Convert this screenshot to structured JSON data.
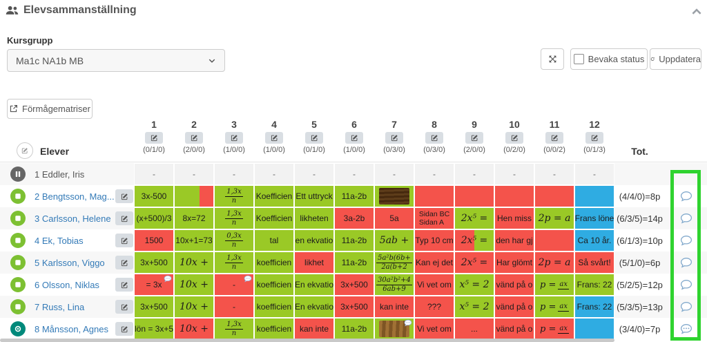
{
  "colors": {
    "green": "#9AC926",
    "red": "#F4534B",
    "blue": "#2FACE2",
    "gray_cell": "#f2f2f2",
    "link": "#337AB7",
    "status_green": "#7DC032",
    "status_gray": "#666666",
    "status_teal": "#00897B",
    "highlight": "#2FD32F"
  },
  "header": {
    "title": "Elevsammanställning",
    "collapse_icon": "chevron-up-icon"
  },
  "controls": {
    "kursgrupp_label": "Kursgrupp",
    "kursgrupp_value": "Ma1c NA1b MB",
    "expand_icon": "expand-icon",
    "bevaka_checked": false,
    "bevaka_label": "Bevaka status",
    "uppdatera_label": "Uppdatera",
    "formagematriser_label": "Förmågematriser"
  },
  "table": {
    "elever_header": "Elever",
    "tot_header": "Tot.",
    "columns": [
      {
        "num": "1",
        "count": "(0/1/0)"
      },
      {
        "num": "2",
        "count": "(2/0/0)"
      },
      {
        "num": "3",
        "count": "(1/0/0)"
      },
      {
        "num": "4",
        "count": "(1/0/0)"
      },
      {
        "num": "5",
        "count": "(0/1/0)"
      },
      {
        "num": "6",
        "count": "(1/0/0)"
      },
      {
        "num": "7",
        "count": "(0/3/0)"
      },
      {
        "num": "8",
        "count": "(0/3/0)"
      },
      {
        "num": "9",
        "count": "(2/0/0)"
      },
      {
        "num": "10",
        "count": "(0/2/0)"
      },
      {
        "num": "11",
        "count": "(0/0/2)"
      },
      {
        "num": "12",
        "count": "(0/1/3)"
      }
    ],
    "rows": [
      {
        "num": "1",
        "name": "Eddler, Iris",
        "status": "pause-icon",
        "link": false,
        "edit": false,
        "cells": [
          {
            "kind": "dash"
          },
          {
            "kind": "dash"
          },
          {
            "kind": "dash"
          },
          {
            "kind": "dash"
          },
          {
            "kind": "dash"
          },
          {
            "kind": "dash"
          },
          {
            "kind": "dash"
          },
          {
            "kind": "dash"
          },
          {
            "kind": "dash"
          },
          {
            "kind": "dash"
          },
          {
            "kind": "dash"
          },
          {
            "kind": "dash"
          }
        ],
        "tot": "",
        "comment": null
      },
      {
        "num": "2",
        "name": "Bengtsson, Mag...",
        "status": "stop-icon",
        "link": true,
        "edit": true,
        "cells": [
          {
            "kind": "plain",
            "text": "3x-500",
            "color": "g"
          },
          {
            "kind": "plain",
            "text": "",
            "color": "g",
            "color2": "r",
            "split": 64
          },
          {
            "kind": "frac",
            "numr": "1,3x",
            "den": "n",
            "color": "g"
          },
          {
            "kind": "plain",
            "text": "Koefficien",
            "color": "g"
          },
          {
            "kind": "plain",
            "text": "Ett uttryck",
            "color": "g"
          },
          {
            "kind": "plain",
            "text": "11a-2b",
            "color": "g"
          },
          {
            "kind": "image",
            "img": "dark",
            "color": "g"
          },
          {
            "kind": "plain",
            "text": "",
            "color": "r"
          },
          {
            "kind": "plain",
            "text": "",
            "color": "r"
          },
          {
            "kind": "plain",
            "text": "",
            "color": "r"
          },
          {
            "kind": "plain",
            "text": "",
            "color": "r"
          },
          {
            "kind": "plain",
            "text": "",
            "color": "b"
          }
        ],
        "tot": "(4/4/0)=8p",
        "comment": "comment-icon"
      },
      {
        "num": "3",
        "name": "Carlsson, Helene",
        "status": "stop-icon",
        "link": true,
        "edit": true,
        "cells": [
          {
            "kind": "plain",
            "text": "(x+500)/3",
            "color": "g"
          },
          {
            "kind": "plain",
            "text": "8x=72",
            "color": "g"
          },
          {
            "kind": "frac",
            "numr": "1,3x",
            "den": "n",
            "color": "g"
          },
          {
            "kind": "plain",
            "text": "Koefficien",
            "color": "g"
          },
          {
            "kind": "plain",
            "text": "likheten",
            "color": "g"
          },
          {
            "kind": "plain",
            "text": "3a-2b",
            "color": "r"
          },
          {
            "kind": "plain",
            "text": "5a",
            "color": "r"
          },
          {
            "kind": "twoline",
            "text": "Sidan BC",
            "text2": "Sidan A",
            "color": "r"
          },
          {
            "kind": "math",
            "text": "2x⁵ =",
            "color": "g"
          },
          {
            "kind": "plain",
            "text": "Hen miss",
            "color": "r"
          },
          {
            "kind": "math",
            "text": "2p = a",
            "color": "g"
          },
          {
            "kind": "plain",
            "text": "Frans löne",
            "color": "b"
          }
        ],
        "tot": "(6/3/5)=14p",
        "comment": "comment-icon"
      },
      {
        "num": "4",
        "name": "Ek, Tobias",
        "status": "stop-icon",
        "link": true,
        "edit": true,
        "cells": [
          {
            "kind": "plain",
            "text": "1500",
            "color": "r"
          },
          {
            "kind": "plain",
            "text": "10x+1=73",
            "color": "g"
          },
          {
            "kind": "frac",
            "numr": "0,3x",
            "den": "n",
            "color": "g"
          },
          {
            "kind": "plain",
            "text": "tal",
            "color": "g"
          },
          {
            "kind": "plain",
            "text": "en ekvatio",
            "color": "g"
          },
          {
            "kind": "plain",
            "text": "11a-2b",
            "color": "g"
          },
          {
            "kind": "math",
            "text": "5ab +",
            "color": "g"
          },
          {
            "kind": "plain",
            "text": "Typ 10 cm",
            "color": "r"
          },
          {
            "kind": "math",
            "text": "2x⁵ =",
            "color": "r",
            "color2": "g",
            "split": 50
          },
          {
            "kind": "plain",
            "text": "den har gj",
            "color": "r"
          },
          {
            "kind": "plain",
            "text": "",
            "color": "r"
          },
          {
            "kind": "plain",
            "text": "Ca 10 år.",
            "color": "b"
          }
        ],
        "tot": "(6/1/3)=10p",
        "comment": "comment-icon"
      },
      {
        "num": "5",
        "name": "Karlsson, Viggo",
        "status": "stop-icon",
        "link": true,
        "edit": true,
        "cells": [
          {
            "kind": "plain",
            "text": "3x+500",
            "color": "g"
          },
          {
            "kind": "math",
            "text": "10x +",
            "color": "g"
          },
          {
            "kind": "frac",
            "numr": "1,3x",
            "den": "n",
            "color": "g"
          },
          {
            "kind": "plain",
            "text": "koefficien",
            "color": "g"
          },
          {
            "kind": "plain",
            "text": "likhet",
            "color": "r"
          },
          {
            "kind": "plain",
            "text": "11a-2b",
            "color": "g"
          },
          {
            "kind": "frac",
            "numr": "5a²b(6b+",
            "den": "2a(b+2",
            "color": "g"
          },
          {
            "kind": "plain",
            "text": "Kan ej det",
            "color": "r"
          },
          {
            "kind": "math",
            "text": "2x⁵ =",
            "color": "r"
          },
          {
            "kind": "plain",
            "text": "Har glömt",
            "color": "r"
          },
          {
            "kind": "math",
            "text": "2p = a",
            "color": "r"
          },
          {
            "kind": "plain",
            "text": "Så svårt!",
            "color": "r"
          }
        ],
        "tot": "(5/1/0)=6p",
        "comment": "comment-icon"
      },
      {
        "num": "6",
        "name": "Olsson, Niklas",
        "status": "stop-icon",
        "link": true,
        "edit": true,
        "cells": [
          {
            "kind": "plain",
            "text": "= 3x",
            "color": "r",
            "bubble": true
          },
          {
            "kind": "math",
            "text": "10x +",
            "color": "g"
          },
          {
            "kind": "plain",
            "text": "-",
            "color": "r",
            "bubble": true
          },
          {
            "kind": "plain",
            "text": "koefficien",
            "color": "g"
          },
          {
            "kind": "plain",
            "text": "En ekvatio",
            "color": "g"
          },
          {
            "kind": "plain",
            "text": "3x+500",
            "color": "r"
          },
          {
            "kind": "frac",
            "numr": "30a²b²+4",
            "den": "6ab+9",
            "color": "g"
          },
          {
            "kind": "plain",
            "text": "Vi vet om",
            "color": "r"
          },
          {
            "kind": "math",
            "text": "x⁵ = 2",
            "color": "g"
          },
          {
            "kind": "plain",
            "text": "vänd på o",
            "color": "r"
          },
          {
            "kind": "pfrac",
            "prefix": "p =",
            "numr": "ax",
            "den": "",
            "color": "g"
          },
          {
            "kind": "plain",
            "text": "Frans: 22",
            "color": "g"
          }
        ],
        "tot": "(5/2/5)=12p",
        "comment": "comment-icon"
      },
      {
        "num": "7",
        "name": "Russ, Lina",
        "status": "stop-icon",
        "link": true,
        "edit": true,
        "cells": [
          {
            "kind": "plain",
            "text": "3x+500",
            "color": "g"
          },
          {
            "kind": "math",
            "text": "10x +",
            "color": "g"
          },
          {
            "kind": "plain",
            "text": "-",
            "color": "r"
          },
          {
            "kind": "plain",
            "text": "koefficien",
            "color": "g"
          },
          {
            "kind": "plain",
            "text": "En ekvatio",
            "color": "g"
          },
          {
            "kind": "plain",
            "text": "3x+500",
            "color": "r"
          },
          {
            "kind": "plain",
            "text": "kan inte",
            "color": "r"
          },
          {
            "kind": "plain",
            "text": "???",
            "color": "r"
          },
          {
            "kind": "math",
            "text": "x⁵ = 2",
            "color": "g"
          },
          {
            "kind": "plain",
            "text": "vänd på o",
            "color": "r"
          },
          {
            "kind": "pfrac",
            "prefix": "p =",
            "numr": "ax",
            "den": "",
            "color": "g"
          },
          {
            "kind": "plain",
            "text": "Frans: 22",
            "color": "b"
          }
        ],
        "tot": "(5/3/5)=13p",
        "comment": "comment-icon"
      },
      {
        "num": "8",
        "name": "Månsson, Agnes",
        "status": "record-icon",
        "link": true,
        "edit": true,
        "cells": [
          {
            "kind": "plain",
            "text": "lön = 3x+5",
            "color": "g"
          },
          {
            "kind": "math",
            "text": "10x +",
            "color": "r"
          },
          {
            "kind": "frac",
            "numr": "1,3x",
            "den": "n",
            "color": "g"
          },
          {
            "kind": "plain",
            "text": "koefficien",
            "color": "g"
          },
          {
            "kind": "plain",
            "text": "kan inte",
            "color": "r"
          },
          {
            "kind": "plain",
            "text": "11a-2b",
            "color": "g"
          },
          {
            "kind": "image",
            "img": "light",
            "color": "g",
            "bubble": true
          },
          {
            "kind": "plain",
            "text": "Vi vet om",
            "color": "r"
          },
          {
            "kind": "plain",
            "text": "...",
            "color": "r"
          },
          {
            "kind": "plain",
            "text": "vänd på o",
            "color": "r"
          },
          {
            "kind": "pfrac",
            "prefix": "p =",
            "numr": "ax",
            "den": "",
            "color": "r"
          },
          {
            "kind": "plain",
            "text": "",
            "color": "b"
          }
        ],
        "tot": "(3/4/0)=7p",
        "comment": "comment-dots-icon"
      }
    ]
  }
}
